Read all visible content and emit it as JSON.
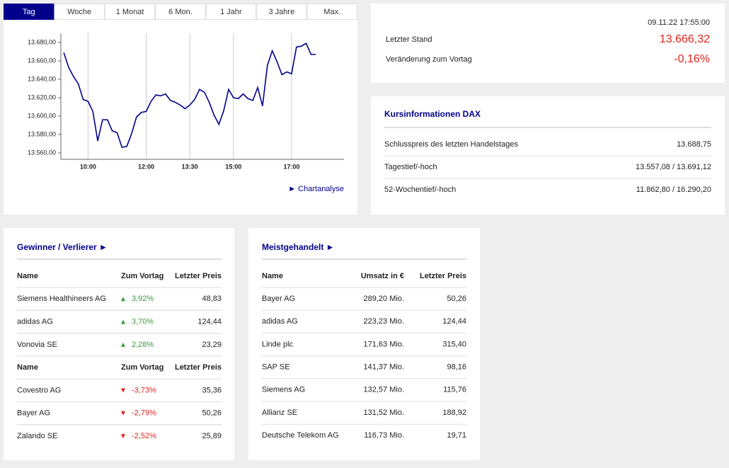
{
  "tabs": [
    "Tag",
    "Woche",
    "1 Monat",
    "6 Mon.",
    "1 Jahr",
    "3 Jahre",
    "Max."
  ],
  "selected_tab": 0,
  "chart_data": {
    "type": "line",
    "x": [
      550,
      560,
      570,
      580,
      590,
      600,
      610,
      620,
      630,
      640,
      650,
      660,
      670,
      680,
      690,
      700,
      710,
      720,
      730,
      740,
      750,
      760,
      770,
      780,
      790,
      800,
      810,
      820,
      830,
      840,
      850,
      860,
      870,
      880,
      890,
      900,
      910,
      920,
      930,
      940,
      950,
      960,
      970,
      980,
      990,
      1000,
      1010,
      1020,
      1030,
      1040,
      1050,
      1060,
      1070
    ],
    "series": [
      {
        "color": "#00008b",
        "values": [
          13669,
          13653,
          13643,
          13635,
          13618,
          13616,
          13605,
          13573,
          13596,
          13596,
          13584,
          13582,
          13566,
          13567,
          13581,
          13599,
          13604,
          13605,
          13616,
          13623,
          13622,
          13624,
          13617,
          13615,
          13612,
          13608,
          13612,
          13618,
          13629,
          13626,
          13615,
          13601,
          13591,
          13606,
          13629,
          13620,
          13619,
          13624,
          13619,
          13617,
          13631,
          13611,
          13655,
          13671,
          13659,
          13645,
          13648,
          13646,
          13675,
          13676,
          13679,
          13667,
          13667
        ]
      }
    ],
    "xlim": [
      544,
      1128
    ],
    "xticks": [
      {
        "value": 600,
        "label": "10:00"
      },
      {
        "value": 720,
        "label": "12:00"
      },
      {
        "value": 810,
        "label": "13:30"
      },
      {
        "value": 900,
        "label": "15:00"
      },
      {
        "value": 1020,
        "label": "17:00"
      }
    ],
    "ylim": [
      13553,
      13690
    ],
    "yticks": [
      {
        "value": 13560,
        "label": "13.560,00"
      },
      {
        "value": 13580,
        "label": "13.580,00"
      },
      {
        "value": 13600,
        "label": "13.600,00"
      },
      {
        "value": 13620,
        "label": "13.620,00"
      },
      {
        "value": 13640,
        "label": "13.640,00"
      },
      {
        "value": 13660,
        "label": "13.660,00"
      },
      {
        "value": 13680,
        "label": "13.680,00"
      }
    ],
    "grid": "x"
  },
  "chart_link": "► Chartanalyse",
  "quote": {
    "timestamp": "09.11.22 17:55:00",
    "rows": [
      [
        "Letzter Stand",
        "13.666,32"
      ],
      [
        "Veränderung zum Vortag",
        "-0,16%"
      ]
    ]
  },
  "info": {
    "title": "Kursinformationen DAX",
    "rows": [
      [
        "Schlusspreis des letzten Handelstages",
        "13.688,75"
      ],
      [
        "Tagestief/-hoch",
        "13.557,08 / 13.691,12"
      ],
      [
        "52-Wochentief/-hoch",
        "11.862,80 / 16.290,20"
      ]
    ]
  },
  "movers": {
    "title": "Gewinner / Verlierer ►",
    "sections": [
      {
        "header": [
          "Name",
          "Zum Vortag",
          "Letzter Preis"
        ],
        "rows": [
          [
            "Siemens Healthineers AG",
            "3,92%",
            "48,83"
          ],
          [
            "adidas AG",
            "3,70%",
            "124,44"
          ],
          [
            "Vonovia SE",
            "2,28%",
            "23,29"
          ]
        ]
      },
      {
        "header": [
          "Name",
          "Zum Vortag",
          "Letzter Preis"
        ],
        "rows": [
          [
            "Covestro AG",
            "-3,73%",
            "35,36"
          ],
          [
            "Bayer AG",
            "-2,79%",
            "50,26"
          ],
          [
            "Zalando SE",
            "-2,52%",
            "25,89"
          ]
        ]
      }
    ]
  },
  "most_traded": {
    "title": "Meistgehandelt ►",
    "header": [
      "Name",
      "Umsatz in €",
      "Letzter Preis"
    ],
    "rows": [
      [
        "Bayer AG",
        "289,20 Mio.",
        "50,26"
      ],
      [
        "adidas AG",
        "223,23 Mio.",
        "124,44"
      ],
      [
        "Linde plc",
        "171,63 Mio.",
        "315,40"
      ],
      [
        "SAP SE",
        "141,37 Mio.",
        "98,16"
      ],
      [
        "Siemens AG",
        "132,57 Mio.",
        "115,76"
      ],
      [
        "Allianz SE",
        "131,52 Mio.",
        "188,92"
      ],
      [
        "Deutsche Telekom AG",
        "116,73 Mio.",
        "19,71"
      ]
    ]
  }
}
